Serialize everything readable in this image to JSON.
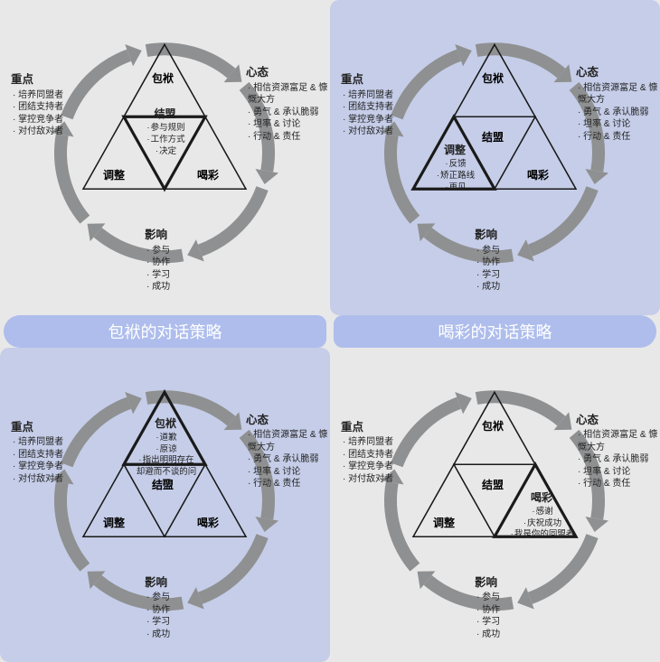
{
  "banner_left": "包袱的对话策略",
  "banner_right": "喝彩的对话策略",
  "colors": {
    "bg": "#e8e8e8",
    "highlight": "#c5cde8",
    "banner": "#aebdec",
    "banner_text": "#ffffff",
    "arrow": "#8f9091",
    "tri_stroke": "#1a1a1a",
    "text": "#222222"
  },
  "common": {
    "zhongdian": {
      "title": "重点",
      "items": [
        "培养同盟者",
        "团结支持者",
        "掌控竞争者",
        "对付敌对者"
      ]
    },
    "xintai": {
      "title": "心态",
      "items": [
        "相信资源富足 & 慷慨大方",
        "勇气 & 承认脆弱",
        "坦率 & 讨论",
        "行动 & 责任"
      ]
    },
    "yingxiang": {
      "title": "影响",
      "items": [
        "参与",
        "协作",
        "学习",
        "成功"
      ]
    }
  },
  "panels": {
    "tl": {
      "highlight": false,
      "vertices": {
        "top": "包袱",
        "left": "调整",
        "right": "喝彩"
      },
      "focus": "center",
      "center": {
        "title": "结盟",
        "items": [
          "参与规则",
          "工作方式",
          "决定"
        ]
      }
    },
    "tr": {
      "highlight": true,
      "vertices": {
        "top": "包袱",
        "left": "调整",
        "right": "喝彩"
      },
      "focus": "left",
      "center_label": "结盟",
      "detail": {
        "title": "调整",
        "items": [
          "反馈",
          "矫正路线",
          "再见"
        ]
      }
    },
    "bl": {
      "highlight": true,
      "vertices": {
        "top": "包袱",
        "left": "调整",
        "right": "喝彩"
      },
      "focus": "top",
      "center_label": "结盟",
      "detail": {
        "title": "包袱",
        "items": [
          "道歉",
          "原谅",
          "指出明明存在却避而不谈的问题"
        ]
      }
    },
    "br": {
      "highlight": false,
      "vertices": {
        "top": "包袱",
        "left": "调整",
        "right": "喝彩"
      },
      "focus": "right",
      "center_label": "结盟",
      "detail": {
        "title": "喝彩",
        "items": [
          "感谢",
          "庆祝成功",
          "我是你的同盟者"
        ]
      }
    }
  }
}
